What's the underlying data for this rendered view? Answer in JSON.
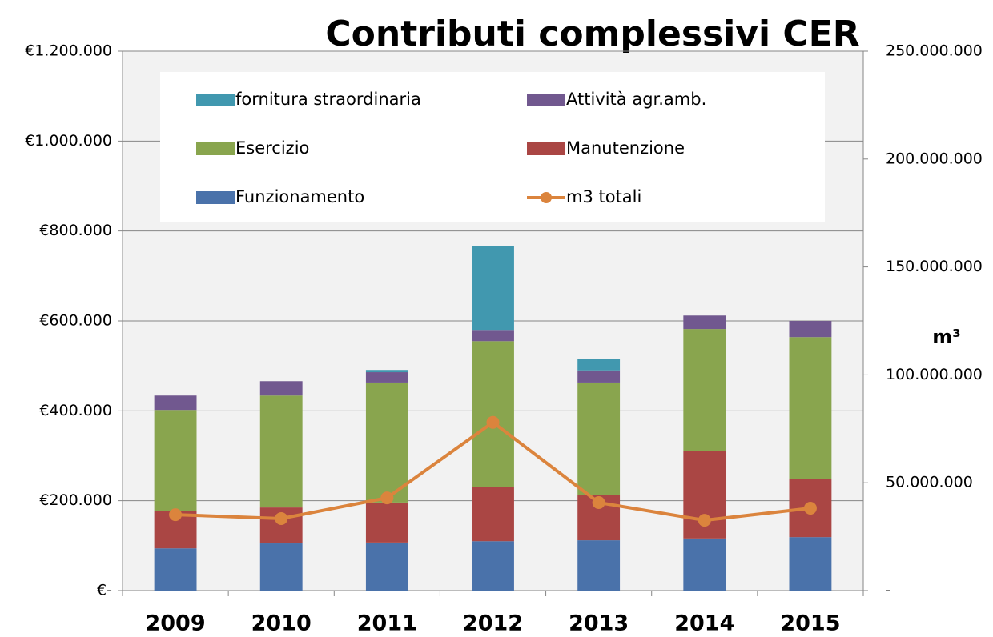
{
  "chart_data": {
    "type": "bar",
    "stacked": true,
    "title": "Contributi complessivi CER",
    "y2label": "m³",
    "categories": [
      "2009",
      "2010",
      "2011",
      "2012",
      "2013",
      "2014",
      "2015"
    ],
    "series": [
      {
        "name": "Funzionamento",
        "color": "#4a72aa",
        "values": [
          94000,
          105000,
          107000,
          110000,
          112000,
          116000,
          119000
        ]
      },
      {
        "name": "Manutenzione",
        "color": "#aa4644",
        "values": [
          84000,
          80000,
          89000,
          121000,
          100000,
          195000,
          130000
        ]
      },
      {
        "name": "Esercizio",
        "color": "#89a54e",
        "values": [
          224000,
          249000,
          267000,
          324000,
          251000,
          271000,
          315000
        ]
      },
      {
        "name": "Attività agr.amb.",
        "color": "#71588f",
        "values": [
          32000,
          32000,
          23000,
          25000,
          27000,
          30000,
          36000
        ]
      },
      {
        "name": "fornitura straordinaria",
        "color": "#4198af",
        "values": [
          0,
          0,
          5000,
          187000,
          26000,
          0,
          0
        ]
      },
      {
        "name": "m3 totali",
        "color": "#db843d",
        "type": "line",
        "axis": "y2",
        "values": [
          35200000,
          33400000,
          43000000,
          78000000,
          40800000,
          32600000,
          38200000
        ]
      }
    ],
    "ylim": [
      0,
      1200000
    ],
    "yticks": [
      {
        "value": 0,
        "label": "€-"
      },
      {
        "value": 200000,
        "label": "€200.000"
      },
      {
        "value": 400000,
        "label": "€400.000"
      },
      {
        "value": 600000,
        "label": "€600.000"
      },
      {
        "value": 800000,
        "label": "€800.000"
      },
      {
        "value": 1000000,
        "label": "€1.000.000"
      },
      {
        "value": 1200000,
        "label": "€1.200.000"
      }
    ],
    "y2lim": [
      0,
      250000000
    ],
    "y2ticks": [
      {
        "value": 0,
        "label": "-"
      },
      {
        "value": 50000000,
        "label": "50.000.000"
      },
      {
        "value": 100000000,
        "label": "100.000.000"
      },
      {
        "value": 150000000,
        "label": "150.000.000"
      },
      {
        "value": 200000000,
        "label": "200.000.000"
      },
      {
        "value": 250000000,
        "label": "250.000.000"
      }
    ],
    "grid": true
  }
}
